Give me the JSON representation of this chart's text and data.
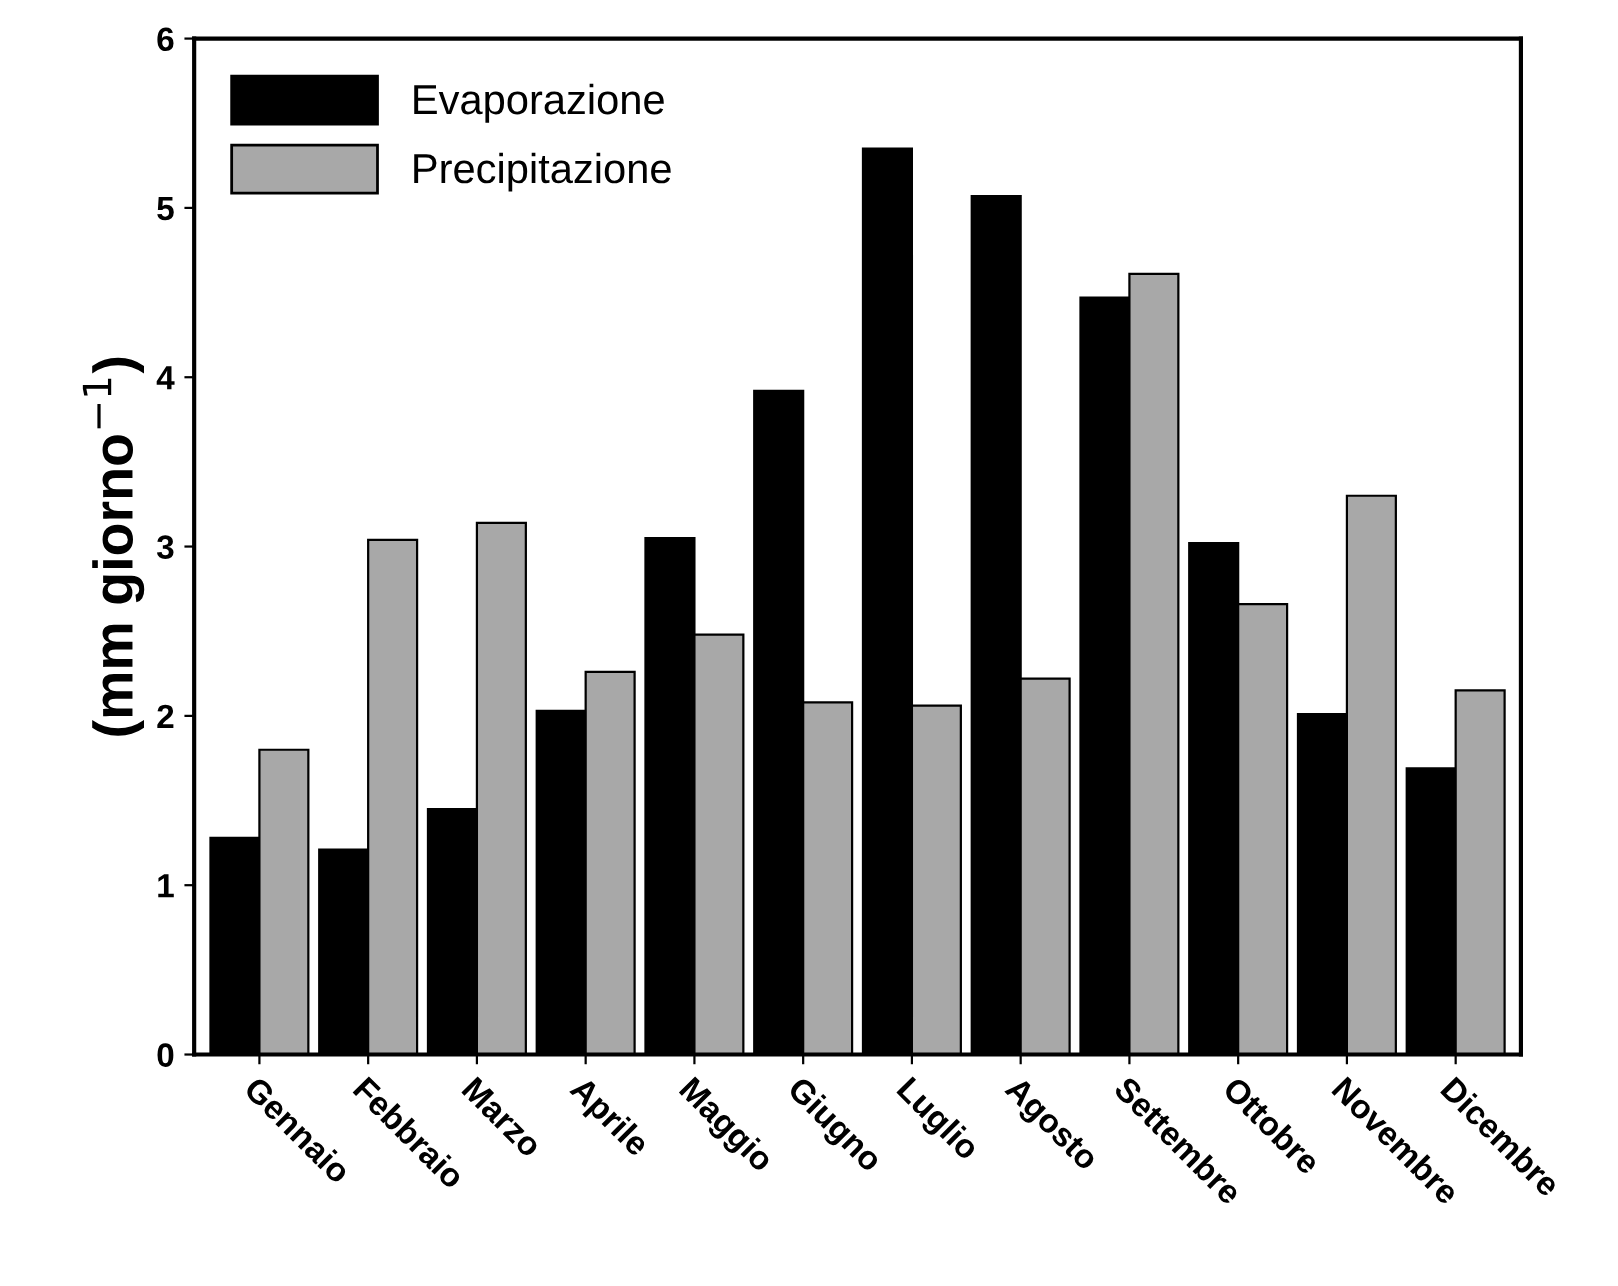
{
  "chart_data": {
    "type": "bar",
    "ylabel": "(mm giorno$^{−1}$)",
    "categories": [
      "Gennaio",
      "Febbraio",
      "Marzo",
      "Aprile",
      "Maggio",
      "Giugno",
      "Luglio",
      "Agosto",
      "Settembre",
      "Ottobre",
      "Novembre",
      "Dicembre"
    ],
    "series": [
      {
        "name": "Evaporazione",
        "color": "#000000",
        "values": [
          1.28,
          1.21,
          1.45,
          2.03,
          3.05,
          3.92,
          5.35,
          5.07,
          4.47,
          3.02,
          2.01,
          1.69
        ]
      },
      {
        "name": "Precipitazione",
        "color": "#a8a8a8",
        "values": [
          1.8,
          3.04,
          3.14,
          2.26,
          2.48,
          2.08,
          2.06,
          2.22,
          4.61,
          2.66,
          3.3,
          2.15
        ]
      }
    ],
    "ylim": [
      0,
      6
    ],
    "yticks": [
      0,
      1,
      2,
      3,
      4,
      5,
      6
    ],
    "grid": false,
    "legend": "top left"
  }
}
